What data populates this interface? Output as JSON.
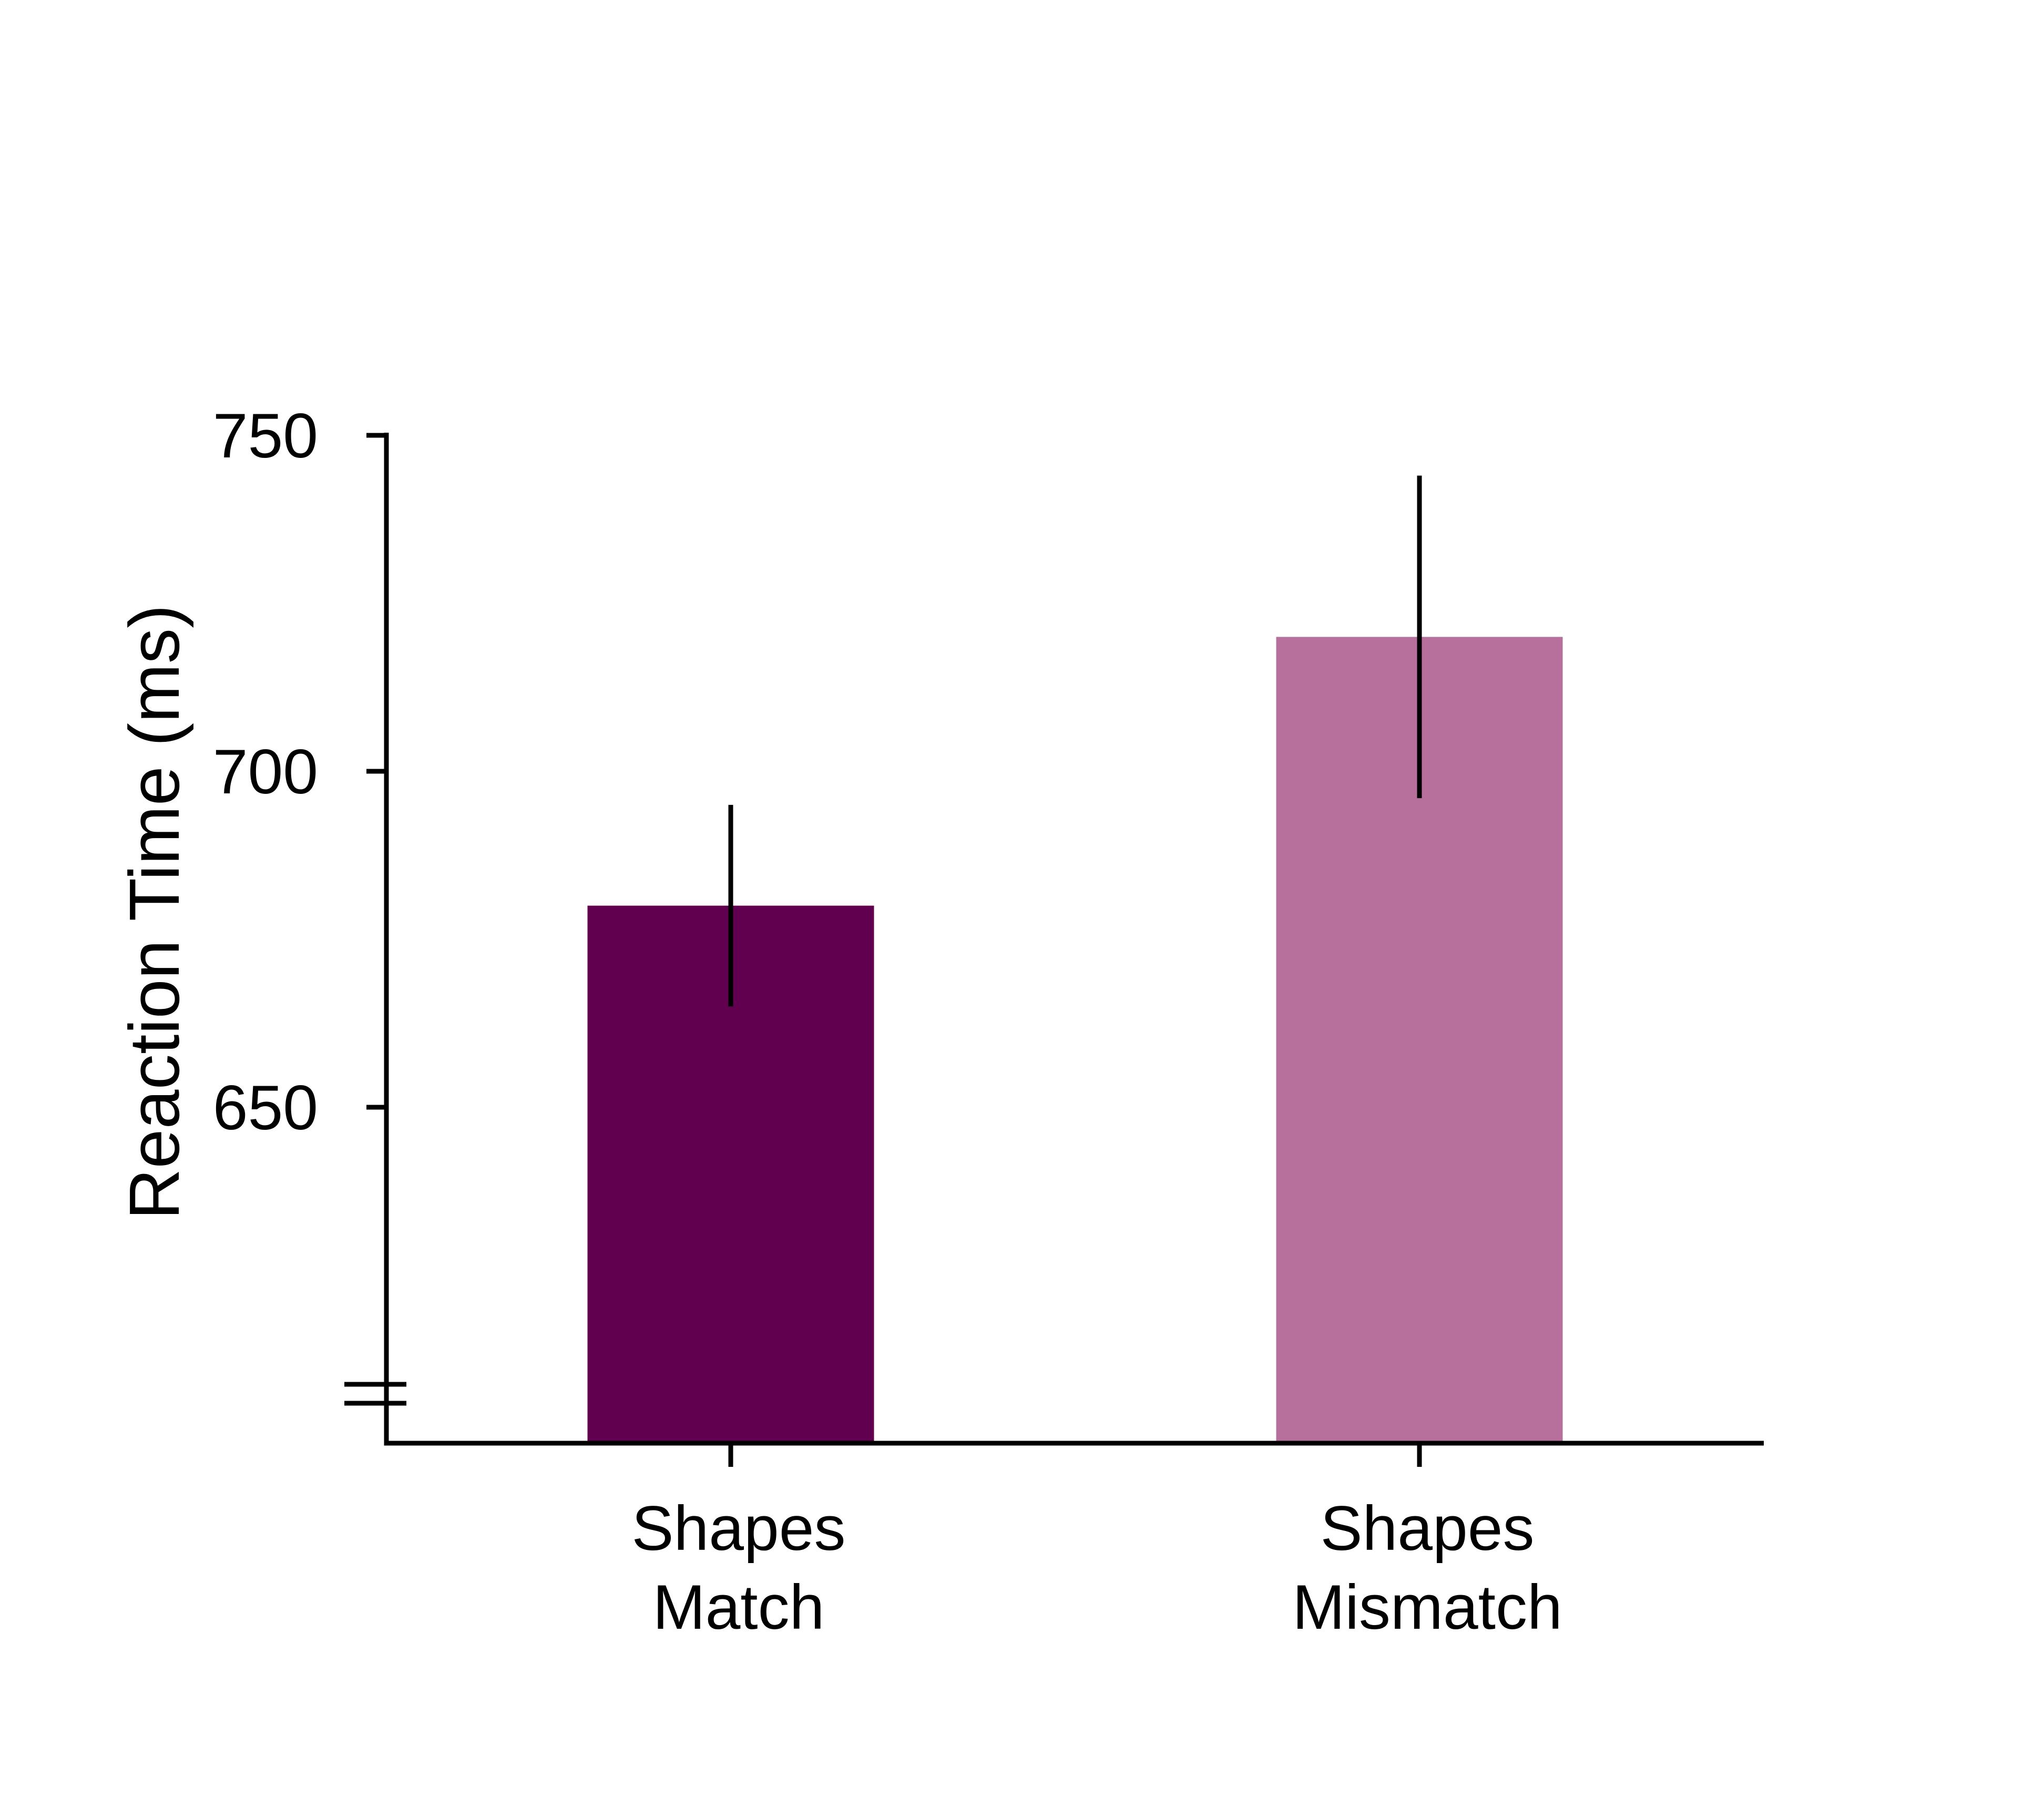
{
  "chart_data": {
    "type": "bar",
    "title": "",
    "xlabel": "",
    "ylabel": "Reaction Time (ms)",
    "ylim": [
      600,
      750
    ],
    "yticks": [
      650,
      700,
      750
    ],
    "axis_break": true,
    "categories": [
      {
        "lines": [
          "Shapes",
          "Match"
        ]
      },
      {
        "lines": [
          "Shapes",
          "Mismatch"
        ]
      }
    ],
    "values": [
      680,
      720
    ],
    "error_low": [
      665,
      696
    ],
    "error_high": [
      695,
      744
    ],
    "colors": [
      "#620050",
      "#b76f9b"
    ],
    "grid": false,
    "legend": "none"
  }
}
